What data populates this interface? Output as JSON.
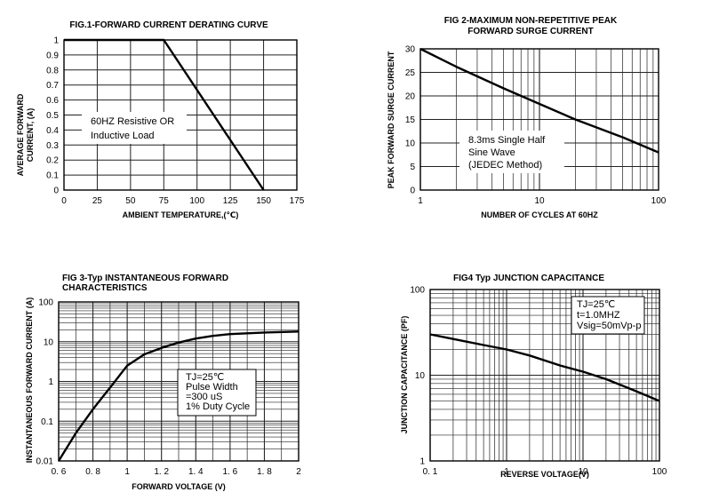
{
  "charts": [
    {
      "type": "line",
      "title_lines": [
        "FIG.1-FORWARD CURRENT DERATING CURVE"
      ],
      "xlabel": "AMBIENT TEMPERATURE,(℃)",
      "ylabel_lines": [
        "AVERAGE FORWARD",
        "CURRENT, (A)"
      ],
      "x_ticks": [
        "0",
        "25",
        "50",
        "75",
        "100",
        "125",
        "150",
        "175"
      ],
      "y_ticks": [
        "0",
        "0.1",
        "0.2",
        "0.3",
        "0.4",
        "0.5",
        "0.6",
        "0.7",
        "0.8",
        "0.9",
        "1"
      ],
      "xlim": [
        0,
        175
      ],
      "ylim": [
        0,
        1
      ],
      "xscale": "linear",
      "yscale": "linear",
      "grid": true,
      "note_lines": [
        "60HZ Resistive OR",
        "Inductive Load"
      ],
      "series": [
        {
          "x": [
            0,
            75,
            150
          ],
          "y": [
            1,
            1,
            0
          ]
        }
      ]
    },
    {
      "type": "line",
      "title_lines": [
        "FIG 2-MAXIMUM NON-REPETITIVE PEAK",
        "FORWARD SURGE CURRENT"
      ],
      "xlabel": "NUMBER OF CYCLES AT 60HZ",
      "ylabel_lines": [
        "PEAK FORWARD SURGE CURRENT"
      ],
      "x_ticks": [
        "1",
        "10",
        "100"
      ],
      "y_ticks": [
        "0",
        "5",
        "10",
        "15",
        "20",
        "25",
        "30"
      ],
      "xlim": [
        1,
        100
      ],
      "ylim": [
        0,
        30
      ],
      "xscale": "log",
      "yscale": "linear",
      "grid": true,
      "note_lines": [
        "8.3ms  Single  Half",
        "Sine Wave",
        "(JEDEC Method)"
      ],
      "series": [
        {
          "x": [
            1,
            2,
            5,
            10,
            20,
            50,
            100
          ],
          "y": [
            30,
            26.2,
            21.6,
            18.3,
            15,
            11.2,
            8
          ]
        }
      ]
    },
    {
      "type": "line",
      "title_lines": [
        "FIG 3-Typ INSTANTANEOUS  FORWARD",
        "CHARACTERISTICS"
      ],
      "xlabel": "FORWARD VOLTAGE (V)",
      "ylabel_lines": [
        "INSTANTANEOUS FORWARD CURRENT (A)"
      ],
      "x_ticks": [
        "0. 6",
        "0. 8",
        "1",
        "1. 2",
        "1. 4",
        "1. 6",
        "1. 8",
        "2"
      ],
      "y_ticks": [
        "0.01",
        "0.1",
        "1",
        "10",
        "100"
      ],
      "xlim": [
        0.6,
        2
      ],
      "ylim": [
        0.01,
        100
      ],
      "xscale": "linear",
      "yscale": "log",
      "grid": true,
      "note_lines": [
        "TJ=25℃",
        "Pulse Width",
        "=300 uS",
        "1% Duty Cycle"
      ],
      "series": [
        {
          "x": [
            0.6,
            0.7,
            0.8,
            0.9,
            1.0,
            1.1,
            1.2,
            1.3,
            1.4,
            1.5,
            1.6,
            1.8,
            2.0
          ],
          "y": [
            0.01,
            0.05,
            0.2,
            0.7,
            2.5,
            4.8,
            7.0,
            9.5,
            12.0,
            14.0,
            15.5,
            17.0,
            18.0
          ]
        }
      ]
    },
    {
      "type": "line",
      "title_lines": [
        "FIG4 Typ JUNCTION CAPACITANCE"
      ],
      "xlabel": "REVERSE VOLTAGE(V)",
      "ylabel_lines": [
        "JUNCTION CAPACITANCE (PF)"
      ],
      "x_ticks": [
        "0. 1",
        "1",
        "10",
        "100"
      ],
      "y_ticks": [
        "1",
        "10",
        "100"
      ],
      "xlim": [
        0.1,
        100
      ],
      "ylim": [
        1,
        100
      ],
      "xscale": "log",
      "yscale": "log",
      "grid": true,
      "note_lines": [
        "TJ=25℃",
        "t=1.0MHZ",
        "Vsig=50mVp-p"
      ],
      "series": [
        {
          "x": [
            0.1,
            0.2,
            0.5,
            1,
            2,
            5,
            10,
            20,
            50,
            100
          ],
          "y": [
            30,
            26.5,
            22.5,
            20,
            17,
            13,
            11,
            9,
            6.5,
            5
          ]
        }
      ]
    }
  ]
}
